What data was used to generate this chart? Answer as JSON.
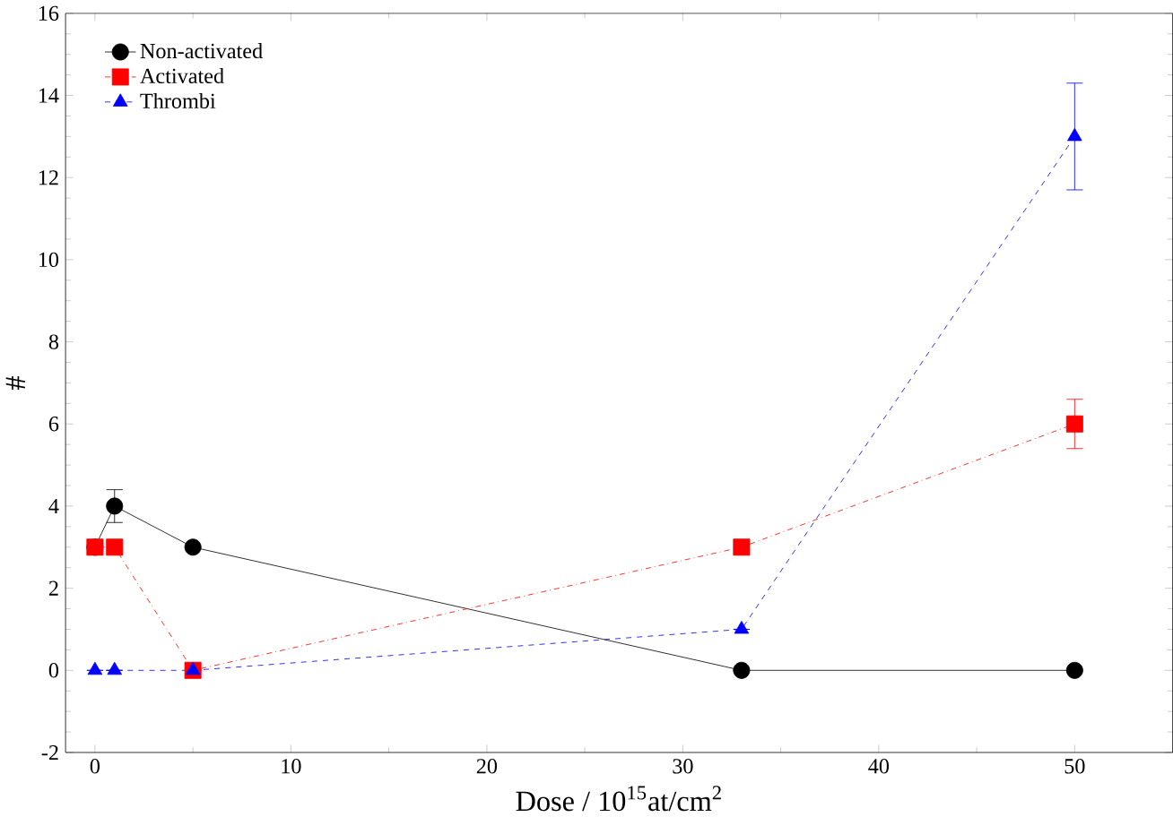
{
  "chart_data": {
    "type": "line",
    "xlabel": "Dose / 10$^{15}$at/cm$^{2}$",
    "ylabel": "#",
    "xlim": [
      -1.5,
      55
    ],
    "ylim": [
      -2,
      16
    ],
    "xticks": [
      0,
      10,
      20,
      30,
      40,
      50
    ],
    "yticks": [
      -2,
      0,
      2,
      4,
      6,
      8,
      10,
      12,
      14,
      16
    ],
    "legend": "top left",
    "grid": false,
    "series": [
      {
        "name": "Non-activated",
        "color": "#000000",
        "marker": "circle",
        "line_style": "solid",
        "x": [
          0,
          1,
          5,
          33,
          50
        ],
        "values": [
          3,
          4,
          3,
          0,
          0
        ],
        "errors": [
          null,
          0.4,
          null,
          null,
          null
        ]
      },
      {
        "name": "Activated",
        "color": "#ff0000",
        "marker": "square",
        "line_style": "dashdot",
        "x": [
          0,
          1,
          5,
          33,
          50
        ],
        "values": [
          3,
          3,
          0,
          3,
          6
        ],
        "errors": [
          null,
          null,
          null,
          null,
          0.6
        ]
      },
      {
        "name": "Thrombi",
        "color": "#0000ff",
        "marker": "triangle",
        "line_style": "dashed",
        "x": [
          0,
          1,
          5,
          33,
          50
        ],
        "values": [
          0,
          0,
          0,
          1,
          13
        ],
        "errors": [
          null,
          null,
          null,
          null,
          1.3
        ]
      }
    ]
  }
}
